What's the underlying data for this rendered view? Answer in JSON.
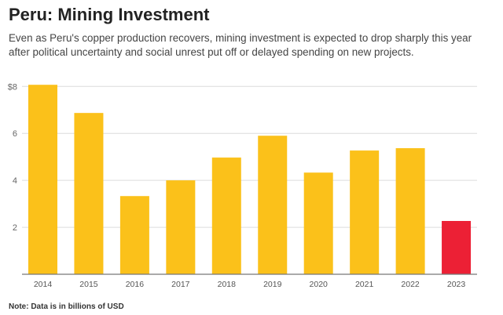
{
  "chart_data": {
    "type": "bar",
    "title": "Peru: Mining Investment",
    "subtitle": "Even as Peru's copper production recovers, mining investment is expected to drop sharply this year after political uncertainty and social unrest put off or delayed spending on new projects.",
    "categories": [
      "2014",
      "2015",
      "2016",
      "2017",
      "2018",
      "2019",
      "2020",
      "2021",
      "2022",
      "2023"
    ],
    "values": [
      8.07,
      6.87,
      3.33,
      4.0,
      4.97,
      5.9,
      4.33,
      5.27,
      5.37,
      2.27
    ],
    "ylim": [
      0,
      8
    ],
    "yticks": [
      2,
      4,
      6,
      8
    ],
    "ytick_labels": [
      "2",
      "4",
      "6",
      "$8"
    ],
    "grid": true,
    "colors": {
      "default": "#FBC11A",
      "highlight": "#EC2035"
    },
    "highlight_category": "2023",
    "note": "Note: Data is in billions of USD"
  }
}
